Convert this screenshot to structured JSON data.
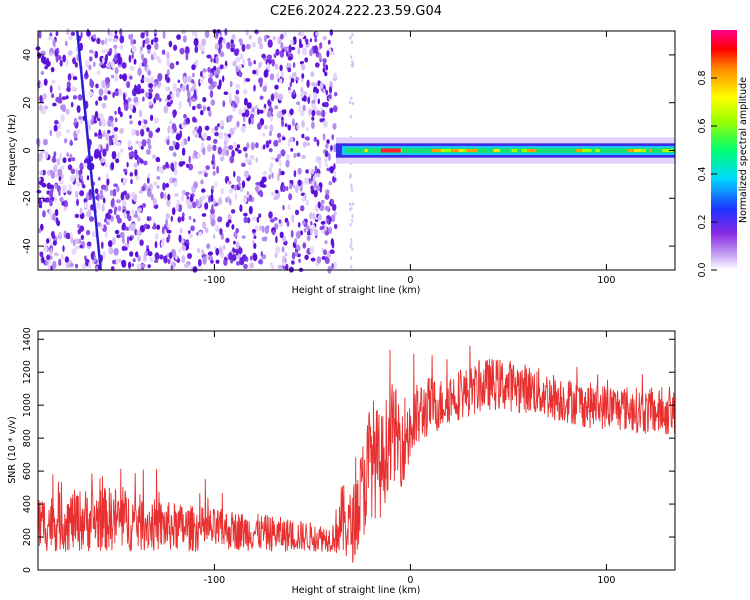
{
  "figure_title": "C2E6.2024.222.23.59.G04",
  "colors": {
    "snr_line": "#e83030",
    "spectrogram_speckle": "#7a2fe0",
    "axis": "#000000"
  },
  "chart_data": [
    {
      "type": "heatmap",
      "title": "C2E6.2024.222.23.59.G04",
      "xlabel": "Height of straight line (km)",
      "ylabel": "Frequency (Hz)",
      "xlim": [
        -190,
        135
      ],
      "ylim": [
        -50,
        50
      ],
      "xticks": [
        -100,
        0,
        100
      ],
      "xtick_labels": [
        "-100",
        "0",
        "100"
      ],
      "yticks": [
        -40,
        -20,
        0,
        20,
        40
      ],
      "ytick_labels": [
        "-40",
        "-20",
        "0",
        "20",
        "40"
      ],
      "colorbar": {
        "label": "Normalized spectral amplitude",
        "range": [
          0,
          1
        ],
        "ticks": [
          0,
          0.2,
          0.4,
          0.6,
          0.8
        ],
        "tick_labels": [
          "0.0",
          "0.2",
          "0.4",
          "0.6",
          "0.8"
        ],
        "colormap": "rainbow (white-purple-blue-cyan-green-yellow-red-magenta)"
      },
      "features": {
        "noise_region_x": [
          -190,
          -38
        ],
        "signal_band_x": [
          -38,
          135
        ],
        "signal_band_frequency_hz": 0,
        "signal_band_halfwidth_hz": 2.5,
        "peak_amplitude_x": -10,
        "slanted_trace": {
          "x_start": -170,
          "f_start": 50,
          "x_end": -158,
          "f_end": -50
        }
      }
    },
    {
      "type": "line",
      "xlabel": "Height of straight line (km)",
      "ylabel": "SNR (10 * v/v)",
      "xlim": [
        -190,
        135
      ],
      "ylim": [
        0,
        1450
      ],
      "xticks": [
        -100,
        0,
        100
      ],
      "xtick_labels": [
        "-100",
        "0",
        "100"
      ],
      "yticks": [
        0,
        200,
        400,
        600,
        800,
        1000,
        1200,
        1400
      ],
      "ytick_labels": [
        "0",
        "200",
        "400",
        "600",
        "800",
        "1000",
        "1200",
        "1400"
      ],
      "series": [
        {
          "x": [
            -190,
            -170,
            -150,
            -130,
            -110,
            -90,
            -70,
            -50,
            -40,
            -35,
            -30,
            -25,
            -20,
            -15,
            -10,
            -5,
            0,
            5,
            10,
            15,
            20,
            30,
            40,
            50,
            60,
            70,
            80,
            90,
            100,
            110,
            120,
            135
          ],
          "y": [
            280,
            300,
            310,
            270,
            250,
            240,
            220,
            200,
            190,
            300,
            250,
            450,
            700,
            620,
            850,
            780,
            850,
            950,
            1000,
            1000,
            1050,
            1080,
            1130,
            1120,
            1100,
            1060,
            1030,
            1000,
            990,
            980,
            960,
            950
          ],
          "spread": [
            170,
            190,
            200,
            160,
            140,
            120,
            110,
            90,
            80,
            230,
            220,
            300,
            380,
            320,
            300,
            280,
            250,
            200,
            180,
            160,
            160,
            150,
            160,
            160,
            150,
            150,
            140,
            140,
            140,
            140,
            140,
            140
          ]
        }
      ]
    }
  ]
}
